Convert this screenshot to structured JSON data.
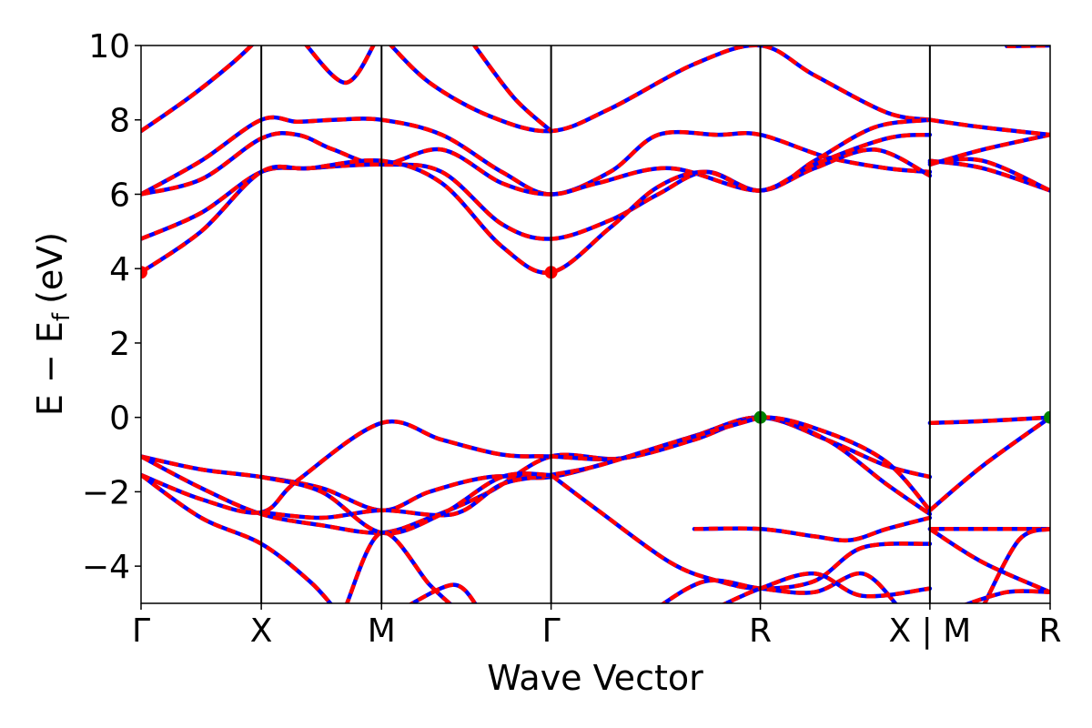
{
  "chart_data": {
    "type": "line",
    "title": "",
    "xlabel": "Wave Vector",
    "ylabel_main": "E − E",
    "ylabel_sub": "f",
    "ylabel_unit": "(eV)",
    "ylim": [
      -5,
      10
    ],
    "yticks": [
      {
        "value": -4,
        "label": "−4"
      },
      {
        "value": -2,
        "label": "−2"
      },
      {
        "value": 0,
        "label": "0"
      },
      {
        "value": 2,
        "label": "2"
      },
      {
        "value": 4,
        "label": "4"
      },
      {
        "value": 6,
        "label": "6"
      },
      {
        "value": 8,
        "label": "8"
      },
      {
        "value": 10,
        "label": "10"
      }
    ],
    "xlim": [
      0,
      7.5
    ],
    "kpoints": [
      {
        "x": 0,
        "label": "Γ"
      },
      {
        "x": 1,
        "label": "X"
      },
      {
        "x": 2,
        "label": "M"
      },
      {
        "x": 3.41,
        "label": "Γ"
      },
      {
        "x": 5.15,
        "label": "R"
      },
      {
        "x": 6.56,
        "label": "X | M"
      },
      {
        "x": 7.56,
        "label": "R"
      }
    ],
    "grid": false,
    "colors": {
      "series_a": "#ff0000",
      "series_b": "#0000ff",
      "cbm": "#ff0000",
      "vbm": "#008000"
    },
    "series": [
      {
        "points": [
          [
            0,
            7.7
          ],
          [
            0.4,
            8.6
          ],
          [
            0.75,
            9.5
          ],
          [
            0.95,
            10.1
          ]
        ]
      },
      {
        "points": [
          [
            1.35,
            10.1
          ],
          [
            1.7,
            9.0
          ],
          [
            1.95,
            10.1
          ]
        ]
      },
      {
        "points": [
          [
            2.05,
            10.1
          ],
          [
            2.4,
            9.0
          ],
          [
            2.9,
            8.1
          ],
          [
            3.41,
            7.7
          ],
          [
            3.9,
            8.3
          ],
          [
            4.6,
            9.5
          ],
          [
            5.15,
            10.0
          ],
          [
            5.6,
            9.2
          ],
          [
            6.2,
            8.2
          ],
          [
            6.56,
            8.0
          ]
        ]
      },
      {
        "points": [
          [
            2.75,
            10.1
          ],
          [
            3.1,
            8.6
          ],
          [
            3.41,
            7.7
          ]
        ]
      },
      {
        "points": [
          [
            7.2,
            9.98
          ],
          [
            7.56,
            10.0
          ]
        ]
      },
      {
        "points": [
          [
            0,
            6.0
          ],
          [
            0.5,
            6.9
          ],
          [
            1,
            8.0
          ],
          [
            1.3,
            7.95
          ],
          [
            1.6,
            8.0
          ],
          [
            2,
            8.0
          ],
          [
            2.5,
            7.6
          ],
          [
            3.0,
            6.6
          ],
          [
            3.41,
            6.0
          ],
          [
            3.9,
            6.6
          ],
          [
            4.3,
            7.6
          ],
          [
            4.8,
            7.6
          ],
          [
            5.15,
            7.6
          ],
          [
            5.7,
            7.0
          ],
          [
            6.2,
            6.7
          ],
          [
            6.56,
            6.6
          ]
        ]
      },
      {
        "points": [
          [
            0,
            6.0
          ],
          [
            0.5,
            6.4
          ],
          [
            1,
            7.5
          ],
          [
            1.3,
            7.6
          ],
          [
            1.6,
            7.2
          ],
          [
            2,
            6.8
          ],
          [
            2.5,
            7.2
          ],
          [
            3.0,
            6.3
          ],
          [
            3.41,
            6.0
          ],
          [
            3.8,
            6.3
          ],
          [
            4.4,
            6.7
          ],
          [
            5.15,
            6.1
          ],
          [
            5.6,
            6.9
          ],
          [
            6.1,
            7.8
          ],
          [
            6.56,
            8.0
          ]
        ]
      },
      {
        "points": [
          [
            0,
            4.8
          ],
          [
            0.5,
            5.5
          ],
          [
            1,
            6.6
          ],
          [
            1.4,
            6.7
          ],
          [
            2,
            6.8
          ],
          [
            2.5,
            6.6
          ],
          [
            3.0,
            5.2
          ],
          [
            3.41,
            4.8
          ],
          [
            3.9,
            5.3
          ],
          [
            4.3,
            6.0
          ],
          [
            4.7,
            6.6
          ],
          [
            5.15,
            6.1
          ],
          [
            5.6,
            6.7
          ],
          [
            6.1,
            7.2
          ],
          [
            6.56,
            6.5
          ]
        ]
      },
      {
        "points": [
          [
            0,
            3.9
          ],
          [
            0.5,
            5.0
          ],
          [
            1,
            6.6
          ],
          [
            1.4,
            6.7
          ],
          [
            2,
            6.9
          ],
          [
            2.5,
            6.3
          ],
          [
            3.0,
            4.6
          ],
          [
            3.41,
            3.9
          ],
          [
            3.9,
            5.1
          ],
          [
            4.3,
            6.2
          ],
          [
            4.7,
            6.6
          ],
          [
            5.15,
            6.1
          ],
          [
            5.6,
            6.8
          ],
          [
            6.2,
            7.5
          ],
          [
            6.56,
            7.6
          ]
        ]
      },
      {
        "points": [
          [
            6.56,
            6.8
          ],
          [
            7.0,
            7.2
          ],
          [
            7.56,
            7.6
          ]
        ]
      },
      {
        "points": [
          [
            6.56,
            8.0
          ],
          [
            7.0,
            7.8
          ],
          [
            7.56,
            7.6
          ]
        ]
      },
      {
        "points": [
          [
            6.56,
            6.9
          ],
          [
            7.0,
            6.7
          ],
          [
            7.56,
            6.1
          ]
        ]
      },
      {
        "points": [
          [
            6.56,
            6.85
          ],
          [
            7.0,
            6.9
          ],
          [
            7.56,
            6.1
          ]
        ]
      },
      {
        "points": [
          [
            0,
            -1.05
          ],
          [
            0.5,
            -1.4
          ],
          [
            1,
            -1.6
          ],
          [
            1.5,
            -1.9
          ],
          [
            2,
            -2.5
          ],
          [
            2.4,
            -2.0
          ],
          [
            2.9,
            -1.6
          ],
          [
            3.41,
            -1.6
          ],
          [
            4.0,
            -1.1
          ],
          [
            4.6,
            -0.5
          ],
          [
            5.15,
            0.0
          ],
          [
            5.7,
            -0.6
          ],
          [
            6.2,
            -1.3
          ],
          [
            6.56,
            -1.6
          ]
        ]
      },
      {
        "points": [
          [
            0,
            -1.05
          ],
          [
            0.5,
            -1.9
          ],
          [
            1,
            -2.6
          ],
          [
            1.5,
            -2.9
          ],
          [
            2,
            -3.1
          ],
          [
            2.4,
            -2.7
          ],
          [
            2.9,
            -2.0
          ],
          [
            3.41,
            -1.05
          ],
          [
            4.0,
            -1.1
          ],
          [
            4.6,
            -0.5
          ],
          [
            5.15,
            0.0
          ],
          [
            5.7,
            -0.6
          ],
          [
            6.2,
            -1.8
          ],
          [
            6.56,
            -2.6
          ]
        ]
      },
      {
        "points": [
          [
            0,
            -1.55
          ],
          [
            0.5,
            -2.2
          ],
          [
            1,
            -2.55
          ],
          [
            1.3,
            -1.7
          ],
          [
            2,
            -0.15
          ],
          [
            2.5,
            -0.6
          ],
          [
            3.0,
            -1.0
          ],
          [
            3.41,
            -1.05
          ],
          [
            4.0,
            -1.1
          ],
          [
            4.6,
            -0.6
          ],
          [
            5.15,
            0.0
          ],
          [
            5.7,
            -0.4
          ],
          [
            6.2,
            -1.2
          ],
          [
            6.56,
            -2.5
          ]
        ]
      },
      {
        "points": [
          [
            0,
            -1.55
          ],
          [
            0.5,
            -2.7
          ],
          [
            1,
            -3.4
          ],
          [
            1.4,
            -4.4
          ],
          [
            1.6,
            -5.1
          ]
        ]
      },
      {
        "points": [
          [
            1,
            -2.55
          ],
          [
            1.5,
            -2.7
          ],
          [
            2,
            -2.5
          ],
          [
            2.6,
            -2.6
          ],
          [
            3.0,
            -1.8
          ],
          [
            3.41,
            -1.55
          ],
          [
            3.8,
            -1.3
          ],
          [
            4.4,
            -0.7
          ],
          [
            5.15,
            0.0
          ]
        ]
      },
      {
        "points": [
          [
            1,
            -1.6
          ],
          [
            1.5,
            -2.0
          ],
          [
            2,
            -3.1
          ],
          [
            2.5,
            -2.6
          ],
          [
            3.0,
            -1.6
          ],
          [
            3.41,
            -1.55
          ]
        ]
      },
      {
        "points": [
          [
            1.7,
            -5.1
          ],
          [
            2,
            -3.1
          ],
          [
            2.4,
            -4.5
          ],
          [
            2.6,
            -5.1
          ]
        ]
      },
      {
        "points": [
          [
            2.2,
            -5.1
          ],
          [
            2.6,
            -4.5
          ],
          [
            2.8,
            -5.1
          ]
        ]
      },
      {
        "points": [
          [
            3.41,
            -1.55
          ],
          [
            3.8,
            -2.5
          ],
          [
            4.4,
            -3.9
          ],
          [
            4.8,
            -4.4
          ],
          [
            5.15,
            -4.6
          ],
          [
            5.6,
            -4.4
          ],
          [
            6.0,
            -3.5
          ],
          [
            6.56,
            -3.4
          ]
        ]
      },
      {
        "points": [
          [
            4.3,
            -5.1
          ],
          [
            4.7,
            -4.4
          ],
          [
            5.15,
            -4.6
          ],
          [
            5.6,
            -4.7
          ],
          [
            6.0,
            -4.2
          ],
          [
            6.3,
            -5.1
          ]
        ]
      },
      {
        "points": [
          [
            4.8,
            -5.1
          ],
          [
            5.15,
            -4.6
          ],
          [
            5.6,
            -4.2
          ],
          [
            6.0,
            -4.8
          ],
          [
            6.56,
            -4.6
          ]
        ]
      },
      {
        "points": [
          [
            4.6,
            -3.0
          ],
          [
            5.15,
            -3.0
          ],
          [
            5.6,
            -3.2
          ],
          [
            5.9,
            -3.3
          ],
          [
            6.2,
            -3.0
          ],
          [
            6.56,
            -2.7
          ]
        ]
      },
      {
        "points": [
          [
            6.56,
            -0.15
          ],
          [
            7.0,
            -0.1
          ],
          [
            7.56,
            0.0
          ]
        ]
      },
      {
        "points": [
          [
            6.56,
            -2.5
          ],
          [
            7.0,
            -1.3
          ],
          [
            7.56,
            0.0
          ]
        ]
      },
      {
        "points": [
          [
            6.56,
            -3.0
          ],
          [
            7.0,
            -3.0
          ],
          [
            7.56,
            -3.0
          ]
        ]
      },
      {
        "points": [
          [
            6.56,
            -3.0
          ],
          [
            7.0,
            -3.9
          ],
          [
            7.56,
            -4.7
          ]
        ]
      },
      {
        "points": [
          [
            7.0,
            -5.1
          ],
          [
            7.3,
            -3.3
          ],
          [
            7.56,
            -3.0
          ]
        ]
      },
      {
        "points": [
          [
            6.8,
            -5.1
          ],
          [
            7.2,
            -4.7
          ],
          [
            7.56,
            -4.7
          ]
        ]
      }
    ],
    "cbm_points": [
      [
        0,
        3.9
      ],
      [
        3.41,
        3.9
      ]
    ],
    "vbm_points": [
      [
        5.15,
        0.0
      ],
      [
        7.56,
        0.0
      ]
    ]
  }
}
